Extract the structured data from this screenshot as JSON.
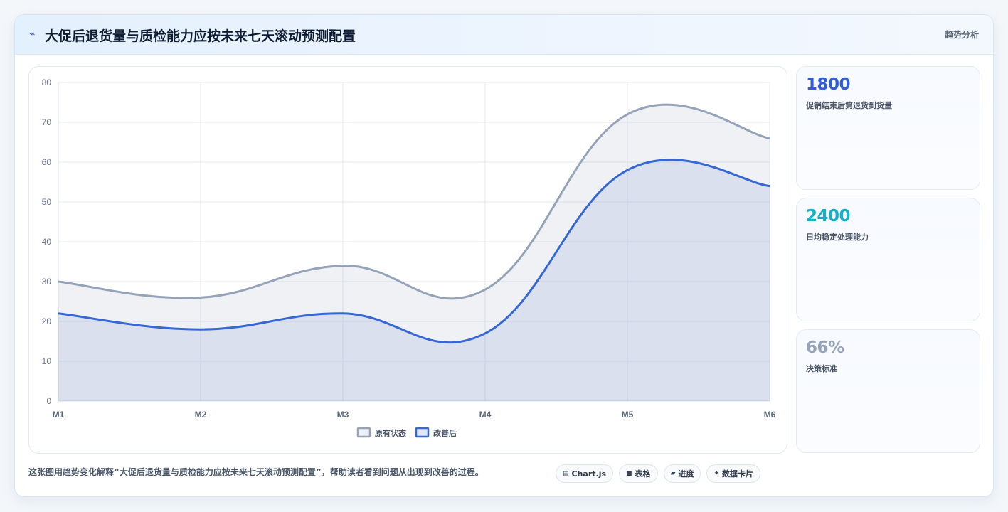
{
  "header": {
    "icon": "trend-line-icon",
    "title": "大促后退货量与质检能力应按未来七天滚动预测配置",
    "link_label": "趋势分析"
  },
  "chart_data": {
    "type": "area",
    "categories": [
      "M1",
      "M2",
      "M3",
      "M4",
      "M5",
      "M6"
    ],
    "series": [
      {
        "name": "原有状态",
        "values": [
          30,
          26,
          34,
          28,
          72,
          66
        ],
        "color": "#94a3b8"
      },
      {
        "name": "改善后",
        "values": [
          22,
          18,
          22,
          17,
          58,
          54
        ],
        "color": "#3568d4"
      }
    ],
    "ylim": [
      0,
      80
    ],
    "yticks": [
      0,
      10,
      20,
      30,
      40,
      50,
      60,
      70,
      80
    ],
    "grid": true,
    "legend_position": "bottom"
  },
  "stats": [
    {
      "value": "1800",
      "label": "促销结束后第退货到货量",
      "color": "#2f5fd8"
    },
    {
      "value": "2400",
      "label": "日均稳定处理能力",
      "color": "#14b0c9"
    },
    {
      "value": "66%",
      "label": "决策标准",
      "color": "#94a3b8"
    }
  ],
  "footer": {
    "description": "这张图用趋势变化解释“大促后退货量与质检能力应按未来七天滚动预测配置”，帮助读者看到问题从出现到改善的过程。",
    "chips": [
      {
        "icon": "chart-icon",
        "glyph": "▤",
        "label": "Chart.js"
      },
      {
        "icon": "table-icon",
        "glyph": "■",
        "label": "表格"
      },
      {
        "icon": "progress-icon",
        "glyph": "▰",
        "label": "进度"
      },
      {
        "icon": "data-card-icon",
        "glyph": "✦",
        "label": "数据卡片"
      }
    ]
  }
}
